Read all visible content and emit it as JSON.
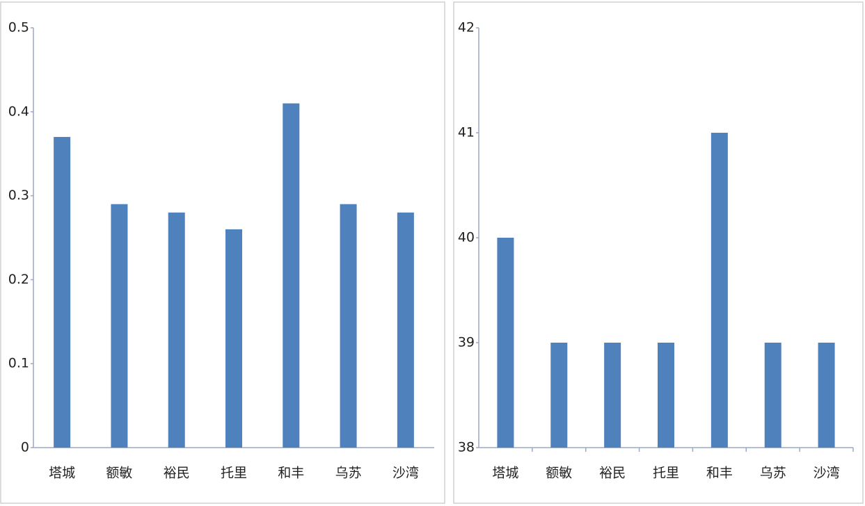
{
  "chart_data": [
    {
      "type": "bar",
      "categories": [
        "塔城",
        "额敏",
        "裕民",
        "托里",
        "和丰",
        "乌苏",
        "沙湾"
      ],
      "values": [
        0.37,
        0.29,
        0.28,
        0.26,
        0.41,
        0.29,
        0.28
      ],
      "color": "#4f81bd",
      "ylim": [
        0,
        0.5
      ],
      "yticks": [
        0,
        0.1,
        0.2,
        0.3,
        0.4,
        0.5
      ]
    },
    {
      "type": "bar",
      "categories": [
        "塔城",
        "额敏",
        "裕民",
        "托里",
        "和丰",
        "乌苏",
        "沙湾"
      ],
      "values": [
        40,
        39,
        39,
        39,
        41,
        39,
        39
      ],
      "color": "#4f81bd",
      "ylim": [
        38,
        42
      ],
      "yticks": [
        38,
        39,
        40,
        41,
        42
      ]
    }
  ]
}
